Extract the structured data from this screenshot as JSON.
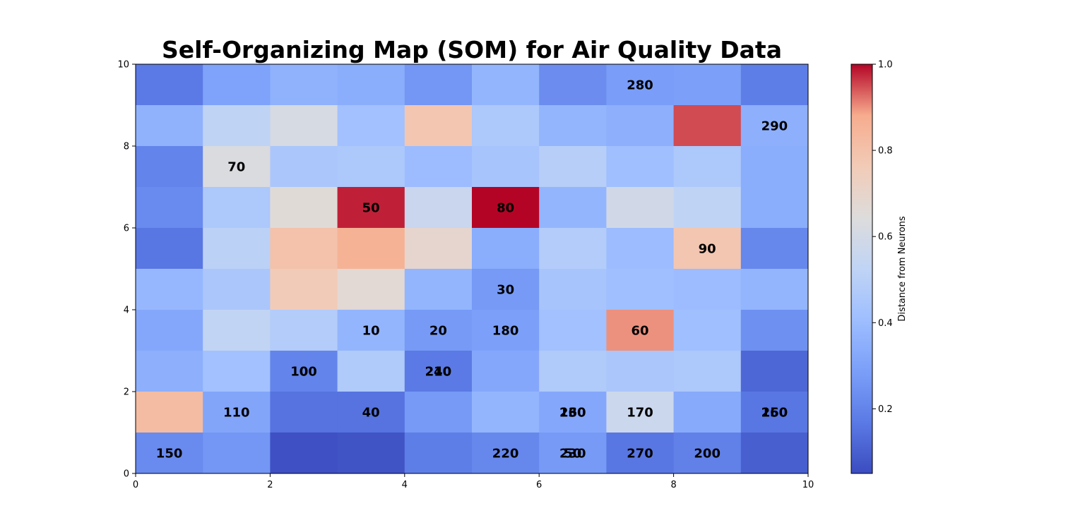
{
  "chart_data": {
    "type": "heatmap",
    "title": "Self-Organizing Map (SOM) for Air Quality Data",
    "xlabel": "",
    "ylabel": "",
    "xlim": [
      0,
      10
    ],
    "ylim": [
      0,
      10
    ],
    "xticks": [
      "0",
      "2",
      "4",
      "6",
      "8",
      "10"
    ],
    "yticks": [
      "0",
      "2",
      "4",
      "6",
      "8",
      "10"
    ],
    "colormap": "coolwarm",
    "colorbar": {
      "label": "Distance from Neurons",
      "ticks": [
        "0.2",
        "0.4",
        "0.6",
        "0.8",
        "1.0"
      ],
      "range": [
        0.05,
        1.0
      ]
    },
    "grid_rows_top_to_bottom": [
      [
        0.17,
        0.3,
        0.36,
        0.34,
        0.26,
        0.37,
        0.23,
        0.28,
        0.29,
        0.18
      ],
      [
        0.36,
        0.52,
        0.61,
        0.42,
        0.78,
        0.46,
        0.37,
        0.35,
        0.95,
        0.35
      ],
      [
        0.2,
        0.63,
        0.45,
        0.46,
        0.4,
        0.44,
        0.49,
        0.41,
        0.46,
        0.34
      ],
      [
        0.22,
        0.46,
        0.66,
        0.98,
        0.56,
        1.0,
        0.37,
        0.59,
        0.52,
        0.34
      ],
      [
        0.16,
        0.51,
        0.8,
        0.86,
        0.69,
        0.34,
        0.48,
        0.4,
        0.78,
        0.21
      ],
      [
        0.38,
        0.45,
        0.76,
        0.67,
        0.37,
        0.27,
        0.44,
        0.41,
        0.4,
        0.37
      ],
      [
        0.32,
        0.53,
        0.48,
        0.37,
        0.27,
        0.29,
        0.42,
        0.9,
        0.41,
        0.24
      ],
      [
        0.35,
        0.42,
        0.2,
        0.47,
        0.17,
        0.32,
        0.47,
        0.45,
        0.46,
        0.12
      ],
      [
        0.82,
        0.31,
        0.15,
        0.15,
        0.27,
        0.37,
        0.32,
        0.57,
        0.33,
        0.16
      ],
      [
        0.22,
        0.26,
        0.06,
        0.07,
        0.18,
        0.21,
        0.27,
        0.16,
        0.19,
        0.1
      ]
    ],
    "annotations": [
      {
        "text": "280",
        "x": 7.5,
        "y": 9.5
      },
      {
        "text": "290",
        "x": 9.5,
        "y": 8.5
      },
      {
        "text": "70",
        "x": 1.5,
        "y": 7.5
      },
      {
        "text": "50",
        "x": 3.5,
        "y": 6.5
      },
      {
        "text": "80",
        "x": 5.5,
        "y": 6.5
      },
      {
        "text": "90",
        "x": 8.5,
        "y": 5.5
      },
      {
        "text": "30",
        "x": 5.5,
        "y": 4.5
      },
      {
        "text": "10",
        "x": 3.5,
        "y": 3.5
      },
      {
        "text": "20",
        "x": 4.5,
        "y": 3.5
      },
      {
        "text": "180",
        "x": 5.5,
        "y": 3.5
      },
      {
        "text": "60",
        "x": 7.5,
        "y": 3.5
      },
      {
        "text": "100",
        "x": 2.5,
        "y": 2.5
      },
      {
        "text": "0",
        "x": 2.5,
        "y": 2.5
      },
      {
        "text": "240",
        "x": 4.5,
        "y": 2.5
      },
      {
        "text": "210",
        "x": 4.5,
        "y": 2.5
      },
      {
        "text": "110",
        "x": 1.5,
        "y": 1.5
      },
      {
        "text": "40",
        "x": 3.5,
        "y": 1.5
      },
      {
        "text": "130",
        "x": 6.5,
        "y": 1.5
      },
      {
        "text": "260",
        "x": 6.5,
        "y": 1.5
      },
      {
        "text": "170",
        "x": 7.5,
        "y": 1.5
      },
      {
        "text": "250",
        "x": 9.5,
        "y": 1.5
      },
      {
        "text": "160",
        "x": 9.5,
        "y": 1.5
      },
      {
        "text": "150",
        "x": 0.5,
        "y": 0.5
      },
      {
        "text": "220",
        "x": 5.5,
        "y": 0.5
      },
      {
        "text": "230",
        "x": 6.5,
        "y": 0.5
      },
      {
        "text": "50",
        "x": 6.5,
        "y": 0.5
      },
      {
        "text": "270",
        "x": 7.5,
        "y": 0.5
      },
      {
        "text": "200",
        "x": 8.5,
        "y": 0.5
      }
    ]
  }
}
